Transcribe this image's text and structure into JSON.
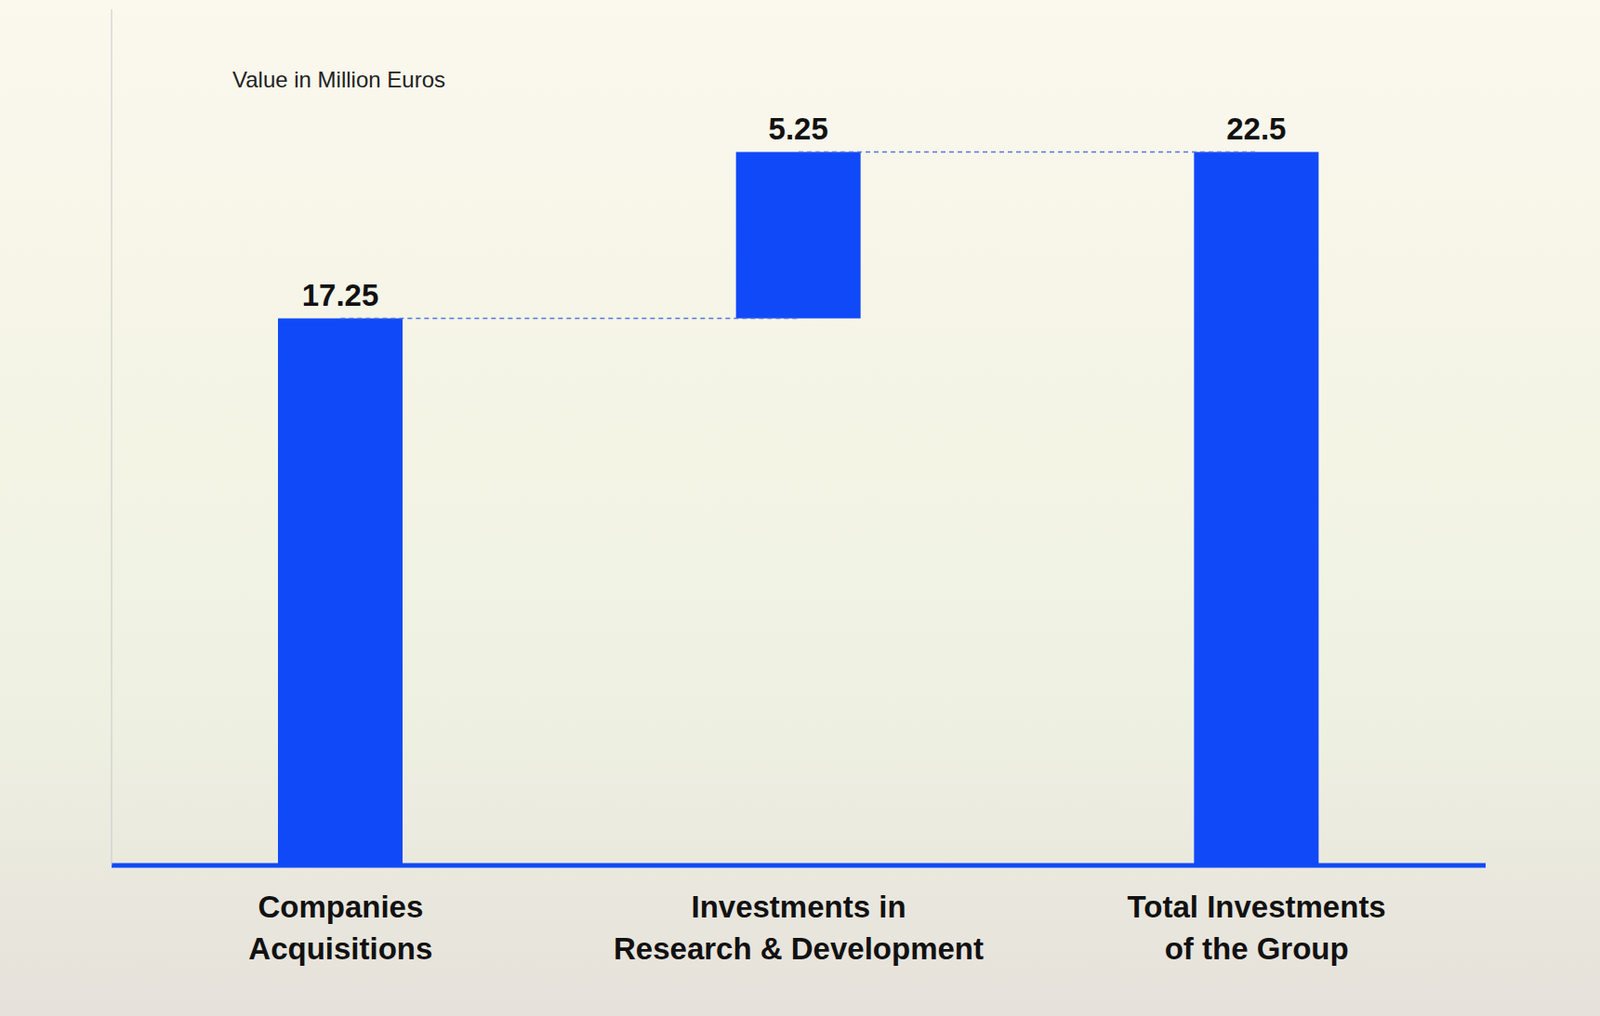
{
  "chart_data": {
    "type": "waterfall",
    "ylabel": "Value in Million Euros",
    "categories": [
      "Companies Acquisitions",
      "Investments in Research & Development",
      "Total Investments of the Group"
    ],
    "values": [
      17.25,
      5.25,
      22.5
    ],
    "color": "#1049f7",
    "ylim": [
      0,
      27
    ],
    "data_labels": true,
    "tick_labels": "x",
    "grid": false
  }
}
